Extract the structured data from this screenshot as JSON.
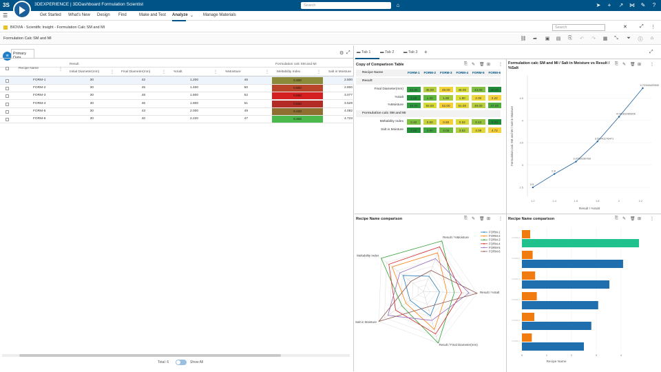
{
  "topbar": {
    "brand": "3DEXPERIENCE | 3DDashboard  Formulation Scientist",
    "search_placeholder": "Search",
    "icons": [
      "tag-icon",
      "share-icon",
      "plus-icon",
      "share-arrow-icon",
      "network-icon",
      "tools-icon",
      "help-icon"
    ]
  },
  "nav": {
    "items": [
      "Get Started",
      "What's New",
      "Design",
      "Find",
      "Make and Test",
      "Analyze",
      "Manage Materials"
    ],
    "active": "Analyze"
  },
  "dashboard": {
    "breadcrumb": "BIOVIA - Scientific Insight - Formulation Calc SM and MI",
    "search_placeholder": "Search"
  },
  "subbar": {
    "title": "Formulation Calc SM and MI"
  },
  "left": {
    "tab": "Primary Data",
    "group_result": "Result",
    "group_formulation": "Formulation calc SM and MI",
    "columns": [
      "Recipe Name",
      "Initial Diameter(mm)",
      "Final Diameter(mm)",
      "%Salt",
      "%Moisture",
      "Meltability Index",
      "Salt in Moisture"
    ],
    "rows": [
      {
        "name": "FORM-1",
        "init": "30",
        "final": "42",
        "salt": "1.200",
        "moist": "46",
        "mi": "0.400",
        "sim": "2.500",
        "color": "#8a8a3a"
      },
      {
        "name": "FORM-2",
        "init": "30",
        "final": "45",
        "salt": "1.400",
        "moist": "50",
        "mi": "0.500",
        "sim": "2.800",
        "color": "#b8452a"
      },
      {
        "name": "FORM-3",
        "init": "30",
        "final": "48",
        "salt": "1.600",
        "moist": "52",
        "mi": "0.600",
        "sim": "3.077",
        "color": "#d42020"
      },
      {
        "name": "FORM-4",
        "init": "30",
        "final": "46",
        "salt": "1.800",
        "moist": "51",
        "mi": "0.533",
        "sim": "3.529",
        "color": "#b42a25"
      },
      {
        "name": "FORM-5",
        "init": "30",
        "final": "43",
        "salt": "2.000",
        "moist": "49",
        "mi": "0.433",
        "sim": "4.082",
        "color": "#8f7030"
      },
      {
        "name": "FORM-6",
        "init": "30",
        "final": "40",
        "salt": "2.220",
        "moist": "47",
        "mi": "0.333",
        "sim": "4.723",
        "color": "#4bb94b"
      }
    ],
    "total": "Total: 6",
    "show_all": "Show All"
  },
  "tabs": [
    "Tab 1",
    "Tab 2",
    "Tab 3"
  ],
  "comparison": {
    "title": "Copy of Comparison Table",
    "header": "Recipe Name",
    "forms": [
      "FORM-1",
      "FORM-2",
      "FORM-3",
      "FORM-4",
      "FORM-5",
      "FORM-6"
    ],
    "section_result": "Result",
    "section_calc": "Formulation calc SM and MI",
    "rows": [
      {
        "label": "Final Diameter(mm)",
        "values": [
          "42.00",
          "45.00",
          "48.00",
          "46.00",
          "43.00",
          "40.00"
        ],
        "colors": [
          "#2e9a3e",
          "#b7cf3e",
          "#f3d23a",
          "#d7dc3a",
          "#7fc040",
          "#1e8c34"
        ]
      },
      {
        "label": "%Salt",
        "values": [
          "1.20",
          "1.40",
          "1.60",
          "1.80",
          "2.00",
          "2.22"
        ],
        "colors": [
          "#1e8c34",
          "#5fb53e",
          "#a5cb3e",
          "#d7dc3a",
          "#efd63a",
          "#f6d03a"
        ]
      },
      {
        "label": "%Moisture",
        "values": [
          "46.00",
          "50.00",
          "52.00",
          "51.00",
          "49.00",
          "47.00"
        ],
        "colors": [
          "#2e9a3e",
          "#d7dc3a",
          "#f6d03a",
          "#e5d83a",
          "#b7cf3e",
          "#4fae3e"
        ]
      }
    ],
    "calc_rows": [
      {
        "label": "Meltability Index",
        "values": [
          "0.40",
          "0.50",
          "0.60",
          "0.53",
          "0.43",
          "0.33"
        ],
        "colors": [
          "#7fc040",
          "#c6d33c",
          "#f6d03a",
          "#dcd93a",
          "#94c33e",
          "#1e8c34"
        ]
      },
      {
        "label": "Salt in Moisture",
        "values": [
          "2.50",
          "2.80",
          "3.08",
          "3.53",
          "4.08",
          "4.72"
        ],
        "colors": [
          "#1e8c34",
          "#3ea43e",
          "#6fba3e",
          "#b2cd3e",
          "#e3d83a",
          "#f6d03a"
        ]
      }
    ]
  },
  "scatter": {
    "title": "Formulation calc SM and MI / Salt in Moisture vs Result / %Salt",
    "xlabel": "Result / %Salt",
    "ylabel": "Formulation calc SM and MI / Salt in Moisture",
    "xticks": [
      "1.2",
      "1.4",
      "1.6",
      "1.8",
      "2",
      "2.2"
    ],
    "yticks": [
      "2.5",
      "3",
      "3.5",
      "4",
      "4.5"
    ]
  },
  "radar": {
    "title": "Recipe Name comparison",
    "axes": [
      "Result / %Moisture",
      "Result / %Salt",
      "Result / Final Diameter(mm)",
      "/ Salt in Moisture",
      "Meltability Index"
    ],
    "legend": [
      "FORM-1",
      "FORM-2",
      "FORM-3",
      "FORM-4",
      "FORM-5",
      "FORM-6"
    ]
  },
  "bar": {
    "title": "Recipe Name comparison",
    "xlabel": "Recipe Name",
    "xticks": [
      "0",
      "1",
      "2",
      "3",
      "4"
    ]
  },
  "chart_data": [
    {
      "type": "scatter",
      "title": "Formulation calc SM and MI / Salt in Moisture vs Result / %Salt",
      "xlabel": "Result / %Salt",
      "ylabel": "Formulation calc SM and MI / Salt in Moisture",
      "x": [
        1.2,
        1.4,
        1.6,
        1.8,
        2.0,
        2.22
      ],
      "y": [
        2.5,
        2.8,
        3.077,
        3.529,
        4.082,
        4.723
      ],
      "labels": [
        "2.5",
        "2.8",
        "3.0769230769",
        "3.52941176471",
        "4.08163265306",
        "4.72340425532"
      ],
      "xlim": [
        1.15,
        2.3
      ],
      "ylim": [
        2.3,
        5.0
      ]
    },
    {
      "type": "radar",
      "title": "Recipe Name comparison",
      "axes": [
        "Result / %Moisture",
        "Result / %Salt",
        "Result / Final Diameter(mm)",
        "/ Salt in Moisture",
        "Meltability Index"
      ],
      "series": [
        {
          "name": "FORM-1",
          "values": [
            46,
            1.2,
            42,
            2.5,
            0.4
          ],
          "color": "#1f77b4"
        },
        {
          "name": "FORM-2",
          "values": [
            50,
            1.4,
            45,
            2.8,
            0.5
          ],
          "color": "#ff7f0e"
        },
        {
          "name": "FORM-3",
          "values": [
            52,
            1.6,
            48,
            3.08,
            0.6
          ],
          "color": "#2ca02c"
        },
        {
          "name": "FORM-4",
          "values": [
            51,
            1.8,
            46,
            3.53,
            0.53
          ],
          "color": "#d62728"
        },
        {
          "name": "FORM-5",
          "values": [
            49,
            2.0,
            43,
            4.08,
            0.43
          ],
          "color": "#9467bd"
        },
        {
          "name": "FORM-6",
          "values": [
            47,
            2.22,
            40,
            4.72,
            0.33
          ],
          "color": "#8c564b"
        }
      ]
    },
    {
      "type": "bar",
      "title": "Recipe Name comparison",
      "xlabel": "Recipe Name",
      "categories": [
        "FORM-6",
        "FORM-5",
        "FORM-4",
        "FORM-3",
        "FORM-2",
        "FORM-1"
      ],
      "series": [
        {
          "values": [
            0.333,
            0.433,
            0.533,
            0.6,
            0.5,
            0.4
          ],
          "color": "#f07c10"
        },
        {
          "values": [
            4.723,
            4.082,
            3.529,
            3.077,
            2.8,
            2.5
          ],
          "color": "#1f6faf"
        }
      ],
      "highlight_color": "#1fc28c",
      "xlim": [
        0,
        5
      ]
    }
  ]
}
